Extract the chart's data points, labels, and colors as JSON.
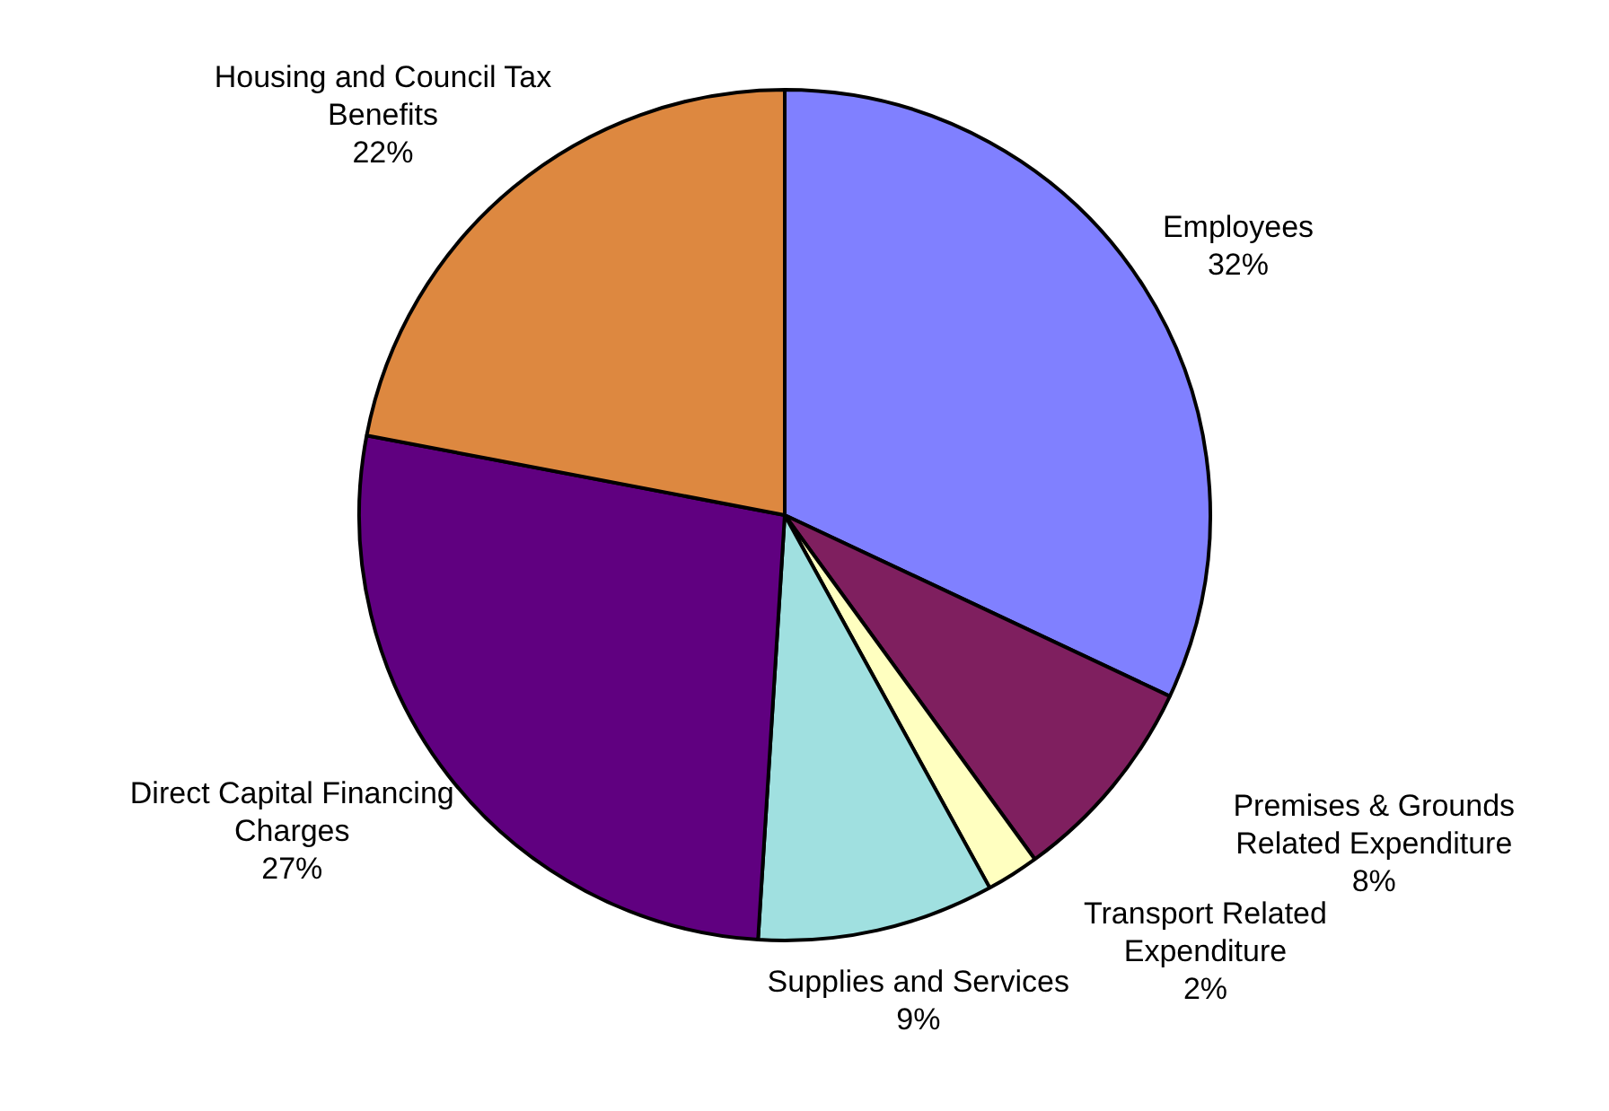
{
  "chart_data": {
    "type": "pie",
    "categories": [
      "Employees",
      "Premises & Grounds Related Expenditure",
      "Transport Related Expenditure",
      "Supplies and Services",
      "Direct Capital Financing Charges",
      "Housing and Council Tax Benefits"
    ],
    "values": [
      32,
      8,
      2,
      9,
      27,
      22
    ],
    "value_labels": [
      "32%",
      "8%",
      "2%",
      "9%",
      "27%",
      "22%"
    ],
    "colors": [
      "#8080ff",
      "#7f1f5f",
      "#ffffc0",
      "#a0e0e0",
      "#600080",
      "#dd8840"
    ],
    "legend": false
  }
}
